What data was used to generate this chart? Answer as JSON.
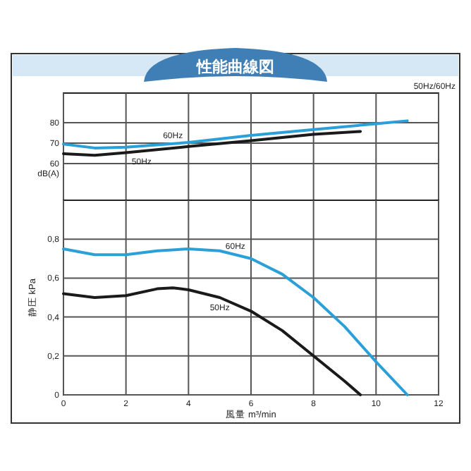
{
  "chart_data": [
    {
      "type": "line",
      "title": "性能曲線図",
      "ylabel": "dB(A)",
      "annotations": [
        "50Hz/60Hz",
        {
          "text": "60Hz",
          "x": 3.5,
          "y": 69.8
        },
        {
          "text": "50Hz",
          "x": 2.5,
          "y": 65.8
        }
      ],
      "xlim": [
        0,
        12
      ],
      "xticks": [
        0,
        2,
        4,
        6,
        8,
        10,
        12
      ],
      "ylim": [
        42,
        94.5
      ],
      "yticks": [
        60,
        70,
        80
      ],
      "tick_labels": "y",
      "grid": true,
      "series": [
        {
          "color": "#2a9fd8",
          "x": [
            0,
            1,
            2,
            4,
            6,
            8,
            10,
            11
          ],
          "values": [
            69.5,
            67.6,
            68,
            70.3,
            73.8,
            76.6,
            79.5,
            80.9
          ]
        },
        {
          "color": "#1a1a1a",
          "x": [
            0,
            1,
            2,
            4,
            6,
            8,
            9.5
          ],
          "values": [
            64.8,
            64,
            65.3,
            68.3,
            71.2,
            74.3,
            75.7
          ]
        }
      ]
    },
    {
      "type": "line",
      "xlabel": "風量 m³/min",
      "ylabel": "静圧 kPa",
      "annotations": [
        {
          "text": "60Hz",
          "x": 5.5,
          "y": 0.72
        },
        {
          "text": "50Hz",
          "x": 5,
          "y": 0.5
        }
      ],
      "xlim": [
        0,
        12
      ],
      "xticks": [
        0,
        2,
        4,
        6,
        8,
        10,
        12
      ],
      "ylim": [
        0,
        1.0
      ],
      "yticks": [
        0,
        {
          "value": 0.2,
          "label": "0,2"
        },
        {
          "value": 0.4,
          "label": "0,4"
        },
        {
          "value": 0.6,
          "label": "0,6"
        },
        {
          "value": 0.8,
          "label": "0,8"
        }
      ],
      "grid": true,
      "series": [
        {
          "color": "#2a9fd8",
          "x": [
            0,
            1,
            2,
            3,
            4,
            5,
            6,
            7,
            8,
            9,
            10,
            11
          ],
          "values": [
            0.75,
            0.72,
            0.72,
            0.74,
            0.75,
            0.74,
            0.7,
            0.62,
            0.5,
            0.35,
            0.17,
            0
          ]
        },
        {
          "color": "#1a1a1a",
          "x": [
            0,
            1,
            2,
            3,
            3.5,
            4,
            5,
            6,
            7,
            8,
            9,
            9.5
          ],
          "values": [
            0.52,
            0.5,
            0.51,
            0.545,
            0.55,
            0.54,
            0.5,
            0.43,
            0.33,
            0.2,
            0.07,
            0
          ]
        }
      ]
    }
  ]
}
